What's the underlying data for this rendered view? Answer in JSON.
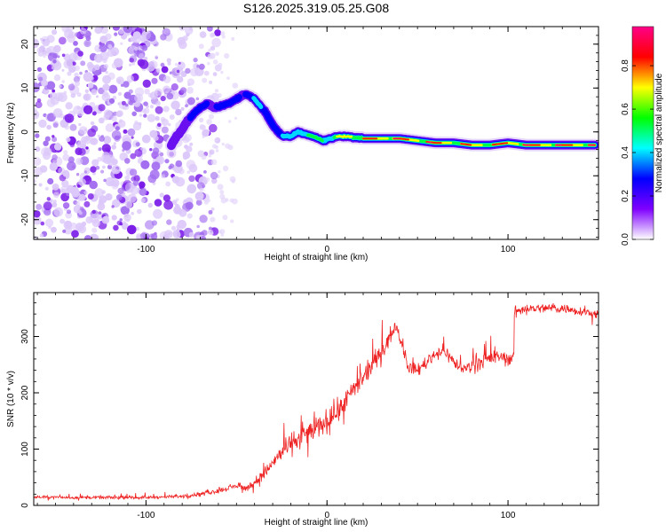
{
  "chart_data": [
    {
      "type": "heatmap",
      "title": "S126.2025.319.05.25.G08",
      "xlabel": "Height of straight line (km)",
      "ylabel": "Frequency (Hz)",
      "xlim": [
        -162,
        150
      ],
      "ylim": [
        -24.5,
        24
      ],
      "xticks": [
        -100,
        0,
        100
      ],
      "xtick_labels": [
        "-100",
        "0",
        "100"
      ],
      "yticks": [
        -20,
        -10,
        0,
        10,
        20
      ],
      "ytick_labels": [
        "-20",
        "-10",
        "0",
        "10",
        "20"
      ],
      "colorbar": {
        "label": "Normalized spectral amplitude",
        "range": [
          0,
          0.98
        ],
        "ticks": [
          0.0,
          0.2,
          0.4,
          0.6,
          0.8
        ],
        "tick_labels": [
          "0.0",
          "0.2",
          "0.4",
          "0.6",
          "0.8"
        ],
        "colors": [
          "#ffffff",
          "#7f00ff",
          "#0000ff",
          "#00ffff",
          "#00ff00",
          "#ffff00",
          "#ff0000",
          "#ff0088"
        ]
      },
      "noise_region_x": [
        -162,
        -70
      ],
      "ridge": {
        "x": [
          -86,
          -83,
          -80,
          -77,
          -74,
          -70,
          -66,
          -62,
          -58,
          -54,
          -50,
          -46,
          -43,
          -40,
          -37,
          -34,
          -32,
          -30,
          -28,
          -26,
          -24,
          -20,
          -16,
          -12,
          -8,
          -5,
          -2,
          2,
          6,
          10,
          20,
          30,
          40,
          50,
          60,
          70,
          80,
          90,
          100,
          110,
          120,
          130,
          140,
          148
        ],
        "freq": [
          -3,
          -1,
          0.5,
          2.5,
          4,
          5.5,
          6.5,
          5.5,
          6,
          6.5,
          7.5,
          8.5,
          8.3,
          7.5,
          6,
          4.5,
          3,
          1.5,
          0.5,
          -0.5,
          -1,
          -1,
          0,
          -0.5,
          -1,
          -1.5,
          -2,
          -1.5,
          -1,
          -1,
          -1.5,
          -1.5,
          -1.5,
          -2,
          -2.5,
          -2.5,
          -3,
          -3,
          -2.5,
          -3,
          -3,
          -3,
          -3,
          -3
        ],
        "amplitude": [
          0.2,
          0.2,
          0.22,
          0.22,
          0.25,
          0.3,
          0.3,
          0.28,
          0.3,
          0.3,
          0.3,
          0.3,
          0.35,
          0.4,
          0.45,
          0.4,
          0.35,
          0.35,
          0.35,
          0.35,
          0.45,
          0.5,
          0.55,
          0.55,
          0.6,
          0.6,
          0.6,
          0.65,
          0.75,
          0.85,
          0.9,
          0.95,
          0.95,
          0.9,
          0.95,
          0.9,
          0.85,
          0.9,
          0.95,
          0.95,
          0.95,
          0.95,
          0.95,
          0.95
        ]
      }
    },
    {
      "type": "line",
      "title": "",
      "xlabel": "Height of straight line (km)",
      "ylabel": "SNR (10 * v/v)",
      "xlim": [
        -162,
        150
      ],
      "ylim": [
        0,
        378
      ],
      "xticks": [
        -100,
        0,
        100
      ],
      "xtick_labels": [
        "-100",
        "0",
        "100"
      ],
      "yticks": [
        0,
        100,
        200,
        300
      ],
      "ytick_labels": [
        "0",
        "100",
        "200",
        "300"
      ],
      "color": "#ee2222",
      "series": [
        {
          "name": "SNR",
          "x": [
            -162,
            -140,
            -120,
            -100,
            -80,
            -70,
            -60,
            -55,
            -50,
            -45,
            -40,
            -35,
            -30,
            -25,
            -20,
            -15,
            -10,
            -5,
            0,
            5,
            10,
            15,
            20,
            25,
            30,
            35,
            38,
            40,
            45,
            50,
            55,
            60,
            65,
            70,
            75,
            80,
            85,
            90,
            95,
            100,
            103,
            104,
            110,
            120,
            130,
            140,
            150
          ],
          "mean": [
            15,
            14,
            14,
            14,
            16,
            20,
            26,
            30,
            35,
            30,
            40,
            55,
            75,
            95,
            110,
            120,
            130,
            140,
            150,
            165,
            185,
            205,
            225,
            250,
            275,
            300,
            320,
            300,
            245,
            240,
            255,
            270,
            275,
            255,
            240,
            250,
            255,
            260,
            265,
            260,
            265,
            345,
            350,
            350,
            350,
            345,
            340
          ],
          "noise": [
            8,
            8,
            8,
            8,
            8,
            10,
            12,
            14,
            15,
            16,
            22,
            30,
            40,
            50,
            55,
            60,
            60,
            60,
            60,
            60,
            60,
            55,
            55,
            50,
            45,
            40,
            30,
            35,
            30,
            35,
            35,
            35,
            35,
            35,
            35,
            35,
            35,
            35,
            35,
            35,
            30,
            25,
            25,
            25,
            25,
            25,
            25
          ]
        }
      ]
    }
  ]
}
